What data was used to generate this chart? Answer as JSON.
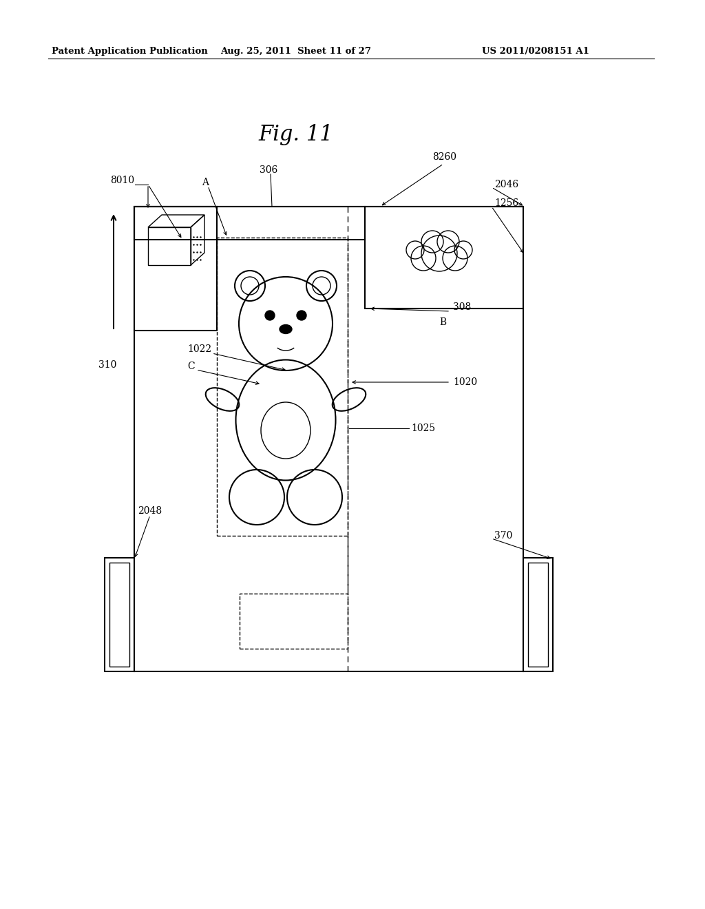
{
  "title": "Fig. 11",
  "header_left": "Patent Application Publication",
  "header_mid": "Aug. 25, 2011  Sheet 11 of 27",
  "header_right": "US 2011/0208151 A1",
  "bg_color": "#ffffff",
  "line_color": "#000000"
}
